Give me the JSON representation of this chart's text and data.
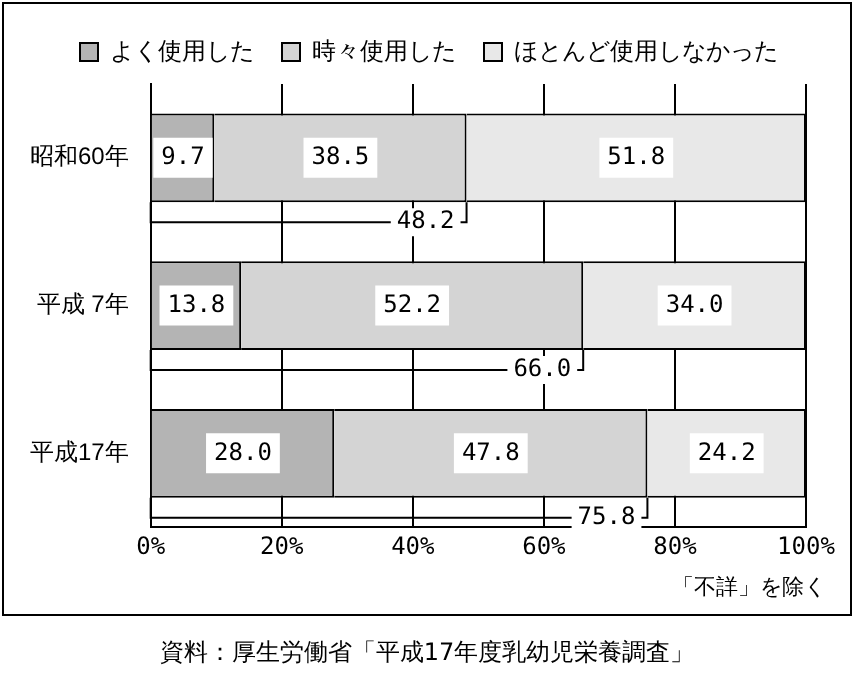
{
  "chart_data": {
    "type": "bar",
    "orientation": "horizontal",
    "stacked": true,
    "categories": [
      "昭和60年",
      "平成 7年",
      "平成17年"
    ],
    "series": [
      {
        "name": "よく使用した",
        "color": "#b4b4b4",
        "values": [
          9.7,
          13.8,
          28.0
        ],
        "value_labels": [
          "9.7",
          "13.8",
          "28.0"
        ]
      },
      {
        "name": "時々使用した",
        "color": "#d4d4d4",
        "values": [
          38.5,
          52.2,
          47.8
        ],
        "value_labels": [
          "38.5",
          "52.2",
          "47.8"
        ]
      },
      {
        "name": "ほとんど使用しなかった",
        "color": "#e8e8e8",
        "values": [
          51.8,
          34.0,
          24.2
        ],
        "value_labels": [
          "51.8",
          "34.0",
          "24.2"
        ]
      }
    ],
    "xlim": [
      0,
      100
    ],
    "xticks": [
      {
        "value": 0,
        "label": "0%"
      },
      {
        "value": 20,
        "label": "20%"
      },
      {
        "value": 40,
        "label": "40%"
      },
      {
        "value": 60,
        "label": "60%"
      },
      {
        "value": 80,
        "label": "80%"
      },
      {
        "value": 100,
        "label": "100%"
      }
    ],
    "grid": "x",
    "legend": "top",
    "annotations": [
      {
        "text": "48.2",
        "x": 48.2,
        "y": "昭和60年"
      },
      {
        "text": "66.0",
        "x": 66.0,
        "y": "平成 7年"
      },
      {
        "text": "75.8",
        "x": 75.8,
        "y": "平成17年"
      },
      "「不詳」を除く",
      "資料：厚生労働省「平成17年度乳幼児栄養調査」"
    ]
  }
}
